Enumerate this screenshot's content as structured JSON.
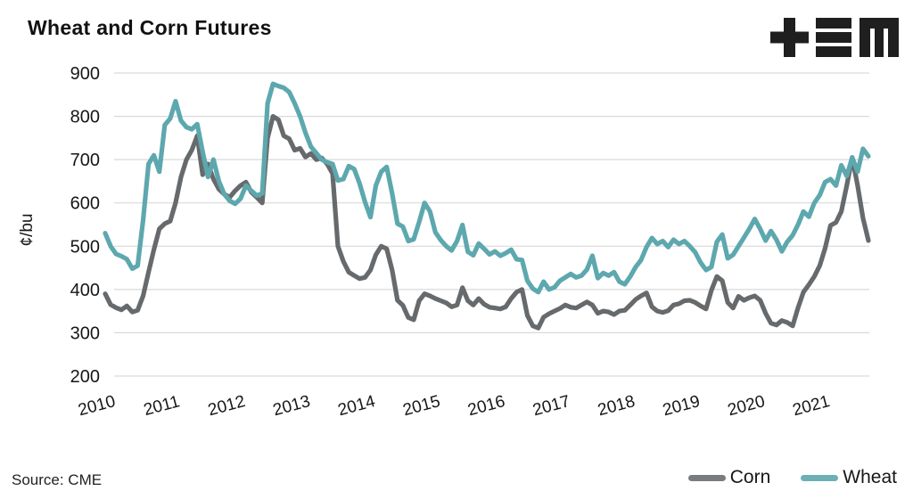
{
  "header": {
    "title": "Wheat and Corn Futures",
    "logo_name": "tem-logo"
  },
  "footer": {
    "source": "Source: CME"
  },
  "colors": {
    "corn": "#676a6c",
    "corn_legend": "#797c7e",
    "wheat": "#5da8ae",
    "wheat_legend": "#6cb0b6",
    "gridline": "#d9d9d9",
    "text": "#161616",
    "logo": "#1f1f1f",
    "background": "#ffffff"
  },
  "chart_data": {
    "type": "line",
    "title": "Wheat and Corn Futures",
    "xlabel": "",
    "ylabel": "¢/bu",
    "ylim": [
      200,
      900
    ],
    "y_ticks": [
      200,
      300,
      400,
      500,
      600,
      700,
      800,
      900
    ],
    "x_ticks": [
      2010,
      2011,
      2012,
      2013,
      2014,
      2015,
      2016,
      2017,
      2018,
      2019,
      2020,
      2021
    ],
    "x_start": "2010-01",
    "x_end": "2021-10",
    "frequency": "monthly",
    "grid": "horizontal",
    "legend_position": "bottom-right",
    "source": "CME",
    "series": [
      {
        "name": "Corn",
        "color": "#676a6c",
        "values": [
          390,
          365,
          358,
          353,
          362,
          348,
          352,
          385,
          440,
          492,
          540,
          552,
          558,
          600,
          660,
          700,
          722,
          755,
          665,
          690,
          655,
          632,
          620,
          613,
          628,
          640,
          648,
          625,
          613,
          600,
          750,
          800,
          792,
          755,
          748,
          722,
          726,
          706,
          714,
          700,
          704,
          690,
          668,
          500,
          465,
          440,
          432,
          425,
          428,
          445,
          480,
          500,
          494,
          445,
          375,
          363,
          335,
          330,
          374,
          390,
          385,
          379,
          374,
          369,
          360,
          364,
          404,
          374,
          364,
          379,
          366,
          359,
          357,
          355,
          360,
          379,
          394,
          400,
          340,
          316,
          311,
          336,
          344,
          350,
          356,
          364,
          359,
          357,
          364,
          371,
          364,
          345,
          350,
          348,
          342,
          350,
          352,
          364,
          377,
          385,
          392,
          360,
          350,
          347,
          351,
          364,
          367,
          374,
          375,
          370,
          362,
          355,
          398,
          430,
          420,
          370,
          357,
          384,
          375,
          381,
          385,
          375,
          345,
          322,
          318,
          328,
          324,
          316,
          358,
          394,
          411,
          430,
          455,
          495,
          548,
          555,
          580,
          640,
          705,
          640,
          565,
          513
        ]
      },
      {
        "name": "Wheat",
        "color": "#5da8ae",
        "values": [
          530,
          500,
          482,
          477,
          470,
          448,
          455,
          560,
          690,
          710,
          672,
          780,
          795,
          835,
          790,
          775,
          770,
          782,
          718,
          660,
          700,
          650,
          620,
          605,
          598,
          610,
          640,
          628,
          617,
          622,
          830,
          875,
          870,
          866,
          856,
          830,
          800,
          762,
          730,
          715,
          700,
          694,
          690,
          652,
          655,
          685,
          678,
          645,
          602,
          567,
          640,
          672,
          683,
          622,
          552,
          545,
          512,
          516,
          556,
          600,
          580,
          532,
          514,
          500,
          490,
          512,
          549,
          487,
          479,
          506,
          494,
          481,
          488,
          478,
          484,
          492,
          470,
          468,
          420,
          402,
          394,
          418,
          400,
          405,
          420,
          428,
          436,
          428,
          432,
          446,
          478,
          426,
          438,
          432,
          440,
          418,
          412,
          430,
          452,
          468,
          498,
          519,
          505,
          512,
          498,
          515,
          505,
          512,
          500,
          486,
          462,
          445,
          452,
          510,
          527,
          472,
          480,
          500,
          520,
          540,
          563,
          540,
          513,
          535,
          515,
          488,
          510,
          525,
          550,
          580,
          568,
          600,
          618,
          648,
          655,
          640,
          687,
          662,
          705,
          672,
          725,
          708
        ]
      }
    ]
  }
}
